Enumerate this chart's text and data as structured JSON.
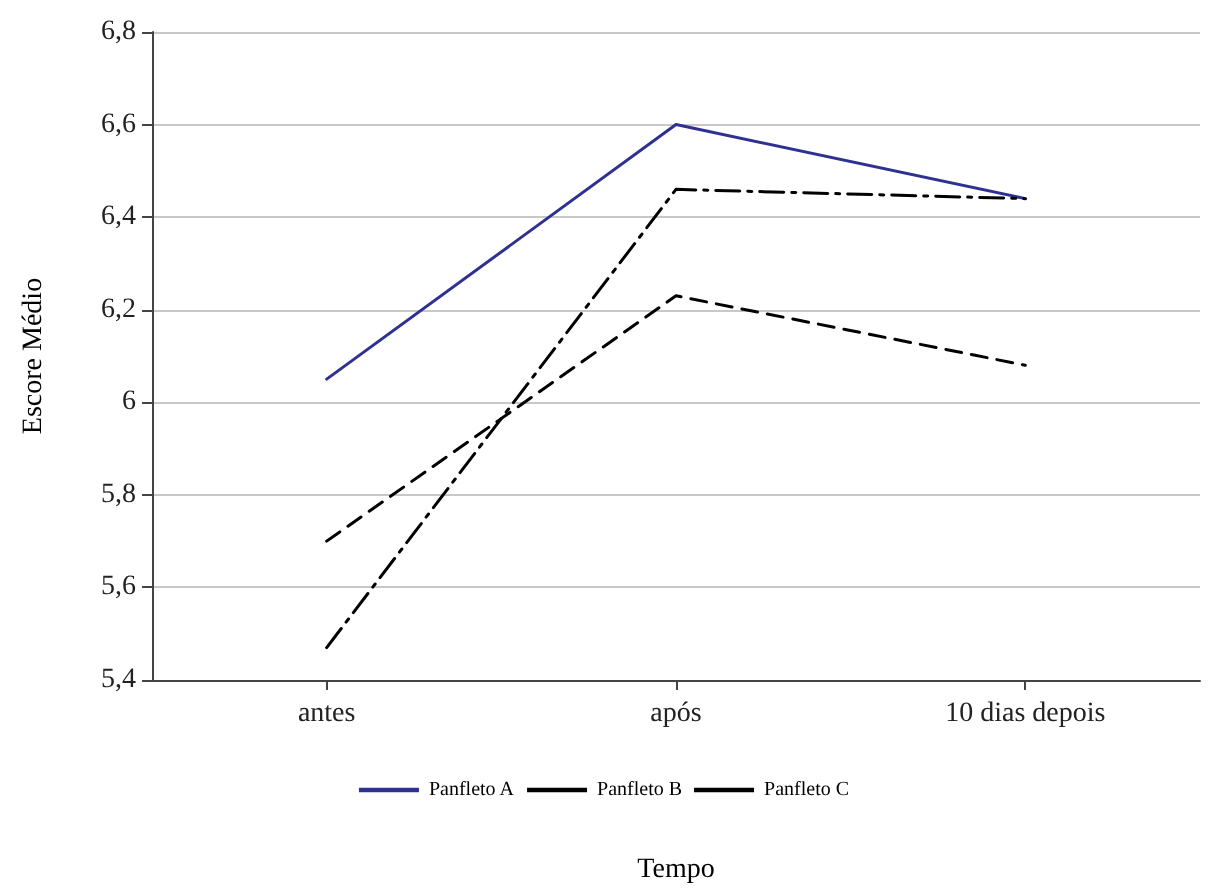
{
  "chart_data": {
    "type": "line",
    "xlabel": "Tempo",
    "ylabel": "Escore Médio",
    "categories": [
      "antes",
      "após",
      "10 dias depois"
    ],
    "series": [
      {
        "name": "Panfleto A",
        "color": "#2e3192",
        "line_style": "solid",
        "values": [
          6.05,
          6.6,
          6.44
        ]
      },
      {
        "name": "Panfleto B",
        "color": "#000000",
        "line_style": "dashdot",
        "values": [
          5.47,
          6.46,
          6.44
        ]
      },
      {
        "name": "Panfleto C",
        "color": "#000000",
        "line_style": "dashed",
        "values": [
          5.7,
          6.23,
          6.08
        ]
      }
    ],
    "ylim": [
      5.4,
      6.8
    ],
    "yticks": [
      {
        "value": 5.4,
        "label": "5,4"
      },
      {
        "value": 5.6,
        "label": "5,6"
      },
      {
        "value": 5.8,
        "label": "5,8"
      },
      {
        "value": 6,
        "label": "6"
      },
      {
        "value": 6.2,
        "label": "6,2"
      },
      {
        "value": 6.4,
        "label": "6,4"
      },
      {
        "value": 6.6,
        "label": "6,6"
      },
      {
        "value": 6.8,
        "label": "6,8"
      }
    ],
    "grid": "y",
    "legend": "bottom",
    "marker": "none"
  }
}
